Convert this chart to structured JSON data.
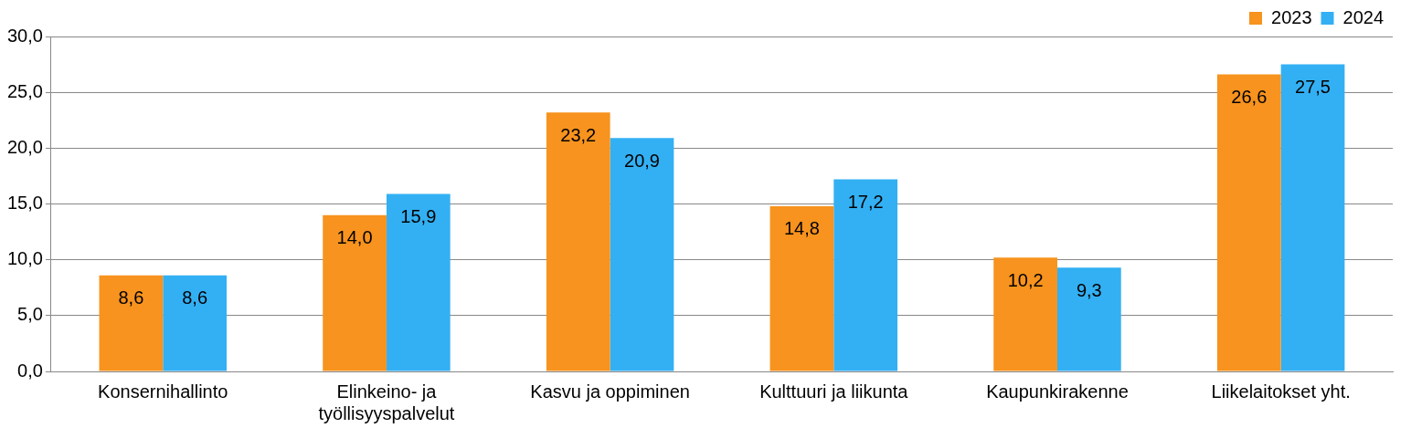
{
  "chart_data": {
    "type": "bar",
    "categories": [
      "Konsernihallinto",
      "Elinkeino- ja työllisyyspalvelut",
      "Kasvu ja oppiminen",
      "Kulttuuri ja liikunta",
      "Kaupunkirakenne",
      "Liikelaitokset yht."
    ],
    "series": [
      {
        "name": "2023",
        "color": "#f7931e",
        "values": [
          8.6,
          14.0,
          23.2,
          14.8,
          10.2,
          26.6
        ],
        "value_labels": [
          "8,6",
          "14,0",
          "23,2",
          "14,8",
          "10,2",
          "26,6"
        ]
      },
      {
        "name": "2024",
        "color": "#33b0f3",
        "values": [
          8.6,
          15.9,
          20.9,
          17.2,
          9.3,
          27.5
        ],
        "value_labels": [
          "8,6",
          "15,9",
          "20,9",
          "17,2",
          "9,3",
          "27,5"
        ]
      }
    ],
    "ylim": [
      0,
      30
    ],
    "yticks": [
      {
        "value": 0,
        "label": "0,0"
      },
      {
        "value": 5,
        "label": "5,0"
      },
      {
        "value": 10,
        "label": "10,0"
      },
      {
        "value": 15,
        "label": "15,0"
      },
      {
        "value": 20,
        "label": "20,0"
      },
      {
        "value": 25,
        "label": "25,0"
      },
      {
        "value": 30,
        "label": "30,0"
      }
    ],
    "grid": "y",
    "legend": "top right"
  }
}
